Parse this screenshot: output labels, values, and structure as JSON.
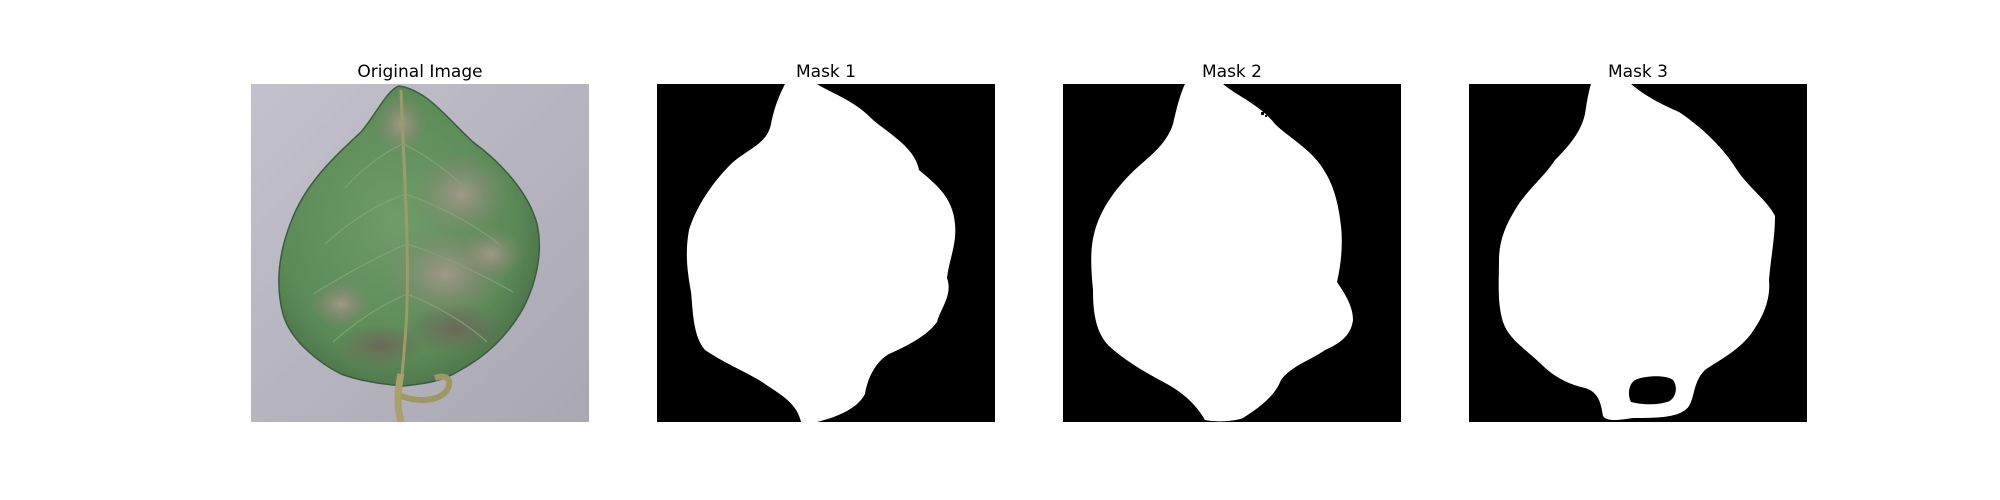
{
  "panels": [
    {
      "title": "Original Image",
      "kind": "photo",
      "background": "#b9b7c2"
    },
    {
      "title": "Mask 1",
      "kind": "mask",
      "background": "#000000",
      "foreground": "#ffffff"
    },
    {
      "title": "Mask 2",
      "kind": "mask",
      "background": "#000000",
      "foreground": "#ffffff"
    },
    {
      "title": "Mask 3",
      "kind": "mask",
      "background": "#000000",
      "foreground": "#ffffff"
    }
  ],
  "colors": {
    "page_background": "#ffffff",
    "leaf_green": "#5e8f58",
    "leaf_dark": "#3e6140",
    "blight_brown": "#8d8070",
    "stem": "#a9a06a"
  }
}
